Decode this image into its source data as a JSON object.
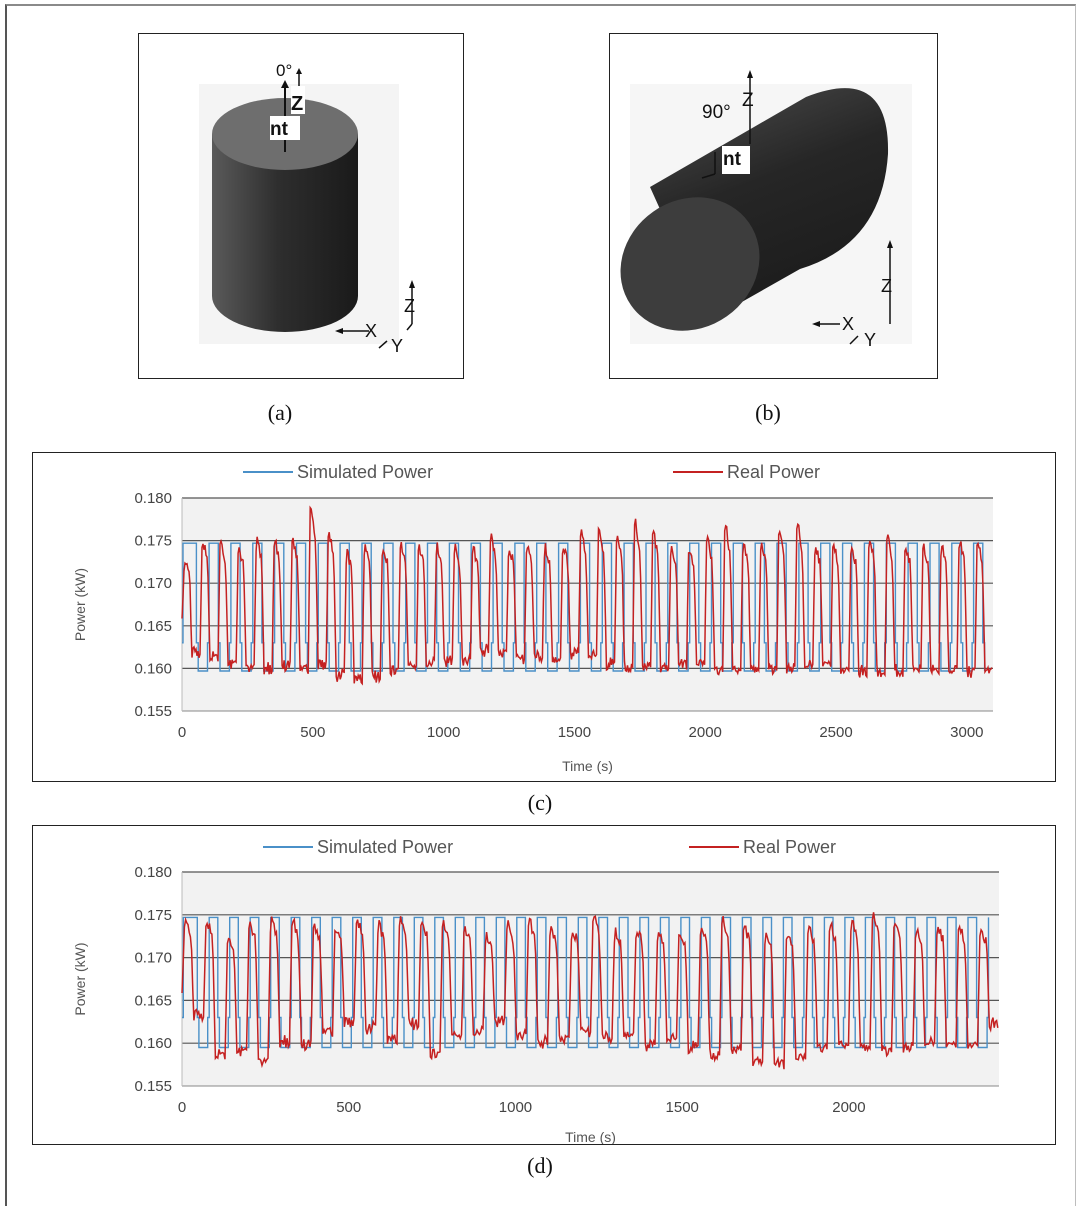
{
  "figure_a": {
    "caption": "(a)",
    "angle_label": "0°",
    "nt_label": "nt",
    "z_label": "Z",
    "axes": {
      "z": "Z",
      "x": "X",
      "y": "Y"
    }
  },
  "figure_b": {
    "caption": "(b)",
    "angle_label": "90°",
    "nt_label": "nt",
    "z_label": "Z",
    "axes": {
      "z": "Z",
      "x": "X",
      "y": "Y"
    }
  },
  "colors": {
    "simulated": "#4a90c8",
    "real": "#c42121",
    "grid": "#555555",
    "plot_bg": "#f2f2f2"
  },
  "chart_data": [
    {
      "id": "c",
      "caption": "(c)",
      "type": "line",
      "xlabel": "Time (s)",
      "ylabel": "Power (kW)",
      "xlim": [
        0,
        3100
      ],
      "ylim": [
        0.155,
        0.18
      ],
      "xticks": [
        "0",
        "500",
        "1000",
        "1500",
        "2000",
        "2500",
        "3000"
      ],
      "xtick_values": [
        0,
        500,
        1000,
        1500,
        2000,
        2500,
        3000
      ],
      "yticks": [
        "0.155",
        "0.160",
        "0.165",
        "0.170",
        "0.175",
        "0.180"
      ],
      "ytick_values": [
        0.155,
        0.16,
        0.165,
        0.17,
        0.175,
        0.18
      ],
      "grid": true,
      "legend": [
        "Simulated Power",
        "Real Power"
      ],
      "series": [
        {
          "name": "Simulated Power",
          "pattern": "square",
          "low": 0.1597,
          "high": 0.1747,
          "mid": 0.163,
          "period": 83.5,
          "count": 37,
          "x_start": 20
        },
        {
          "name": "Real Power",
          "low": 0.1597,
          "peaks": [
            0.1725,
            0.1755,
            0.1755,
            0.1745,
            0.1755,
            0.1755,
            0.1757,
            0.1798,
            0.1765,
            0.1738,
            0.1745,
            0.1745,
            0.1747,
            0.1745,
            0.1748,
            0.1745,
            0.1745,
            0.1762,
            0.1745,
            0.1745,
            0.1745,
            0.1748,
            0.1765,
            0.1772,
            0.1765,
            0.1778,
            0.1765,
            0.1748,
            0.1745,
            0.1758,
            0.1775,
            0.1748,
            0.1752,
            0.1768,
            0.1782,
            0.1745,
            0.1748,
            0.1745,
            0.1758,
            0.1762,
            0.1745,
            0.1748,
            0.1748,
            0.1755,
            0.1752
          ],
          "troughs": [
            0.1618,
            0.1612,
            0.1605,
            0.1602,
            0.16,
            0.1603,
            0.1598,
            0.1605,
            0.1592,
            0.1588,
            0.159,
            0.1598,
            0.1602,
            0.1605,
            0.1608,
            0.1612,
            0.1622,
            0.1618,
            0.161,
            0.1615,
            0.1612,
            0.1618,
            0.1615,
            0.1605,
            0.16,
            0.1602,
            0.16,
            0.1604,
            0.1608,
            0.1598,
            0.16,
            0.1602,
            0.1598,
            0.16,
            0.1603,
            0.1605,
            0.1598,
            0.1596,
            0.1598,
            0.1596,
            0.1598,
            0.1598,
            0.1598,
            0.1598,
            0.1598
          ],
          "x_end": 3100
        }
      ]
    },
    {
      "id": "d",
      "caption": "(d)",
      "type": "line",
      "xlabel": "Time (s)",
      "ylabel": "Power (kW)",
      "xlim": [
        0,
        2450
      ],
      "ylim": [
        0.155,
        0.18
      ],
      "xticks": [
        "0",
        "500",
        "1000",
        "1500",
        "2000"
      ],
      "xtick_values": [
        0,
        500,
        1000,
        1500,
        2000
      ],
      "yticks": [
        "0.155",
        "0.160",
        "0.165",
        "0.170",
        "0.175",
        "0.180"
      ],
      "ytick_values": [
        0.155,
        0.16,
        0.165,
        0.17,
        0.175,
        0.18
      ],
      "grid": true,
      "legend": [
        "Simulated Power",
        "Real Power"
      ],
      "series": [
        {
          "name": "Simulated Power",
          "pattern": "square",
          "low": 0.1595,
          "high": 0.1747,
          "mid": 0.163,
          "period": 61.5,
          "count": 39,
          "x_start": 20
        },
        {
          "name": "Real Power",
          "low": 0.1595,
          "peaks": [
            0.1748,
            0.1748,
            0.1725,
            0.1745,
            0.1748,
            0.1748,
            0.1742,
            0.1735,
            0.1748,
            0.1742,
            0.1748,
            0.1748,
            0.1742,
            0.1735,
            0.1728,
            0.1742,
            0.1748,
            0.1738,
            0.1735,
            0.1752,
            0.1732,
            0.1735,
            0.1728,
            0.1732,
            0.1742,
            0.1748,
            0.1738,
            0.1732,
            0.1732,
            0.1738,
            0.1742,
            0.1745,
            0.1758,
            0.1745,
            0.1738,
            0.1738,
            0.1738,
            0.1735
          ],
          "troughs": [
            0.1632,
            0.1585,
            0.159,
            0.158,
            0.1602,
            0.1598,
            0.1612,
            0.1625,
            0.1618,
            0.1605,
            0.1622,
            0.1588,
            0.1608,
            0.1612,
            0.1625,
            0.1612,
            0.1602,
            0.1605,
            0.1612,
            0.1608,
            0.1612,
            0.1598,
            0.1605,
            0.1595,
            0.1585,
            0.1592,
            0.1578,
            0.1575,
            0.1585,
            0.1595,
            0.16,
            0.1598,
            0.159,
            0.1595,
            0.16,
            0.1598,
            0.1598,
            0.1622
          ],
          "x_end": 2450
        }
      ]
    }
  ]
}
